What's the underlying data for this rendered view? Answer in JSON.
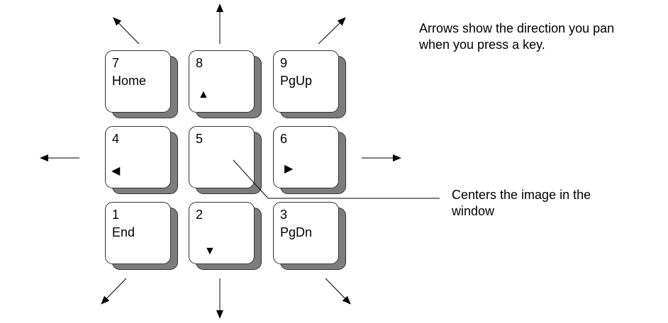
{
  "keys": [
    {
      "id": "7",
      "number": "7",
      "label": "Home",
      "icon": null
    },
    {
      "id": "8",
      "number": "8",
      "label": "",
      "icon": "up-triangle",
      "glyph": "▲"
    },
    {
      "id": "9",
      "number": "9",
      "label": "PgUp",
      "icon": null
    },
    {
      "id": "4",
      "number": "4",
      "label": "",
      "icon": "left-triangle",
      "glyph": "◀"
    },
    {
      "id": "5",
      "number": "5",
      "label": "",
      "icon": null
    },
    {
      "id": "6",
      "number": "6",
      "label": "",
      "icon": "right-triangle",
      "glyph": "▶"
    },
    {
      "id": "1",
      "number": "1",
      "label": "End",
      "icon": null
    },
    {
      "id": "2",
      "number": "2",
      "label": "",
      "icon": "down-triangle",
      "glyph": "▼"
    },
    {
      "id": "3",
      "number": "3",
      "label": "PgDn",
      "icon": null
    }
  ],
  "notes": {
    "arrows_line1": "Arrows show the direction you pan",
    "arrows_line2": "when you press a key.",
    "center_line1": "Centers the image in the",
    "center_line2": "window"
  },
  "pan_arrows": [
    "up-left",
    "up",
    "up-right",
    "left",
    "right",
    "down-left",
    "down",
    "down-right"
  ]
}
